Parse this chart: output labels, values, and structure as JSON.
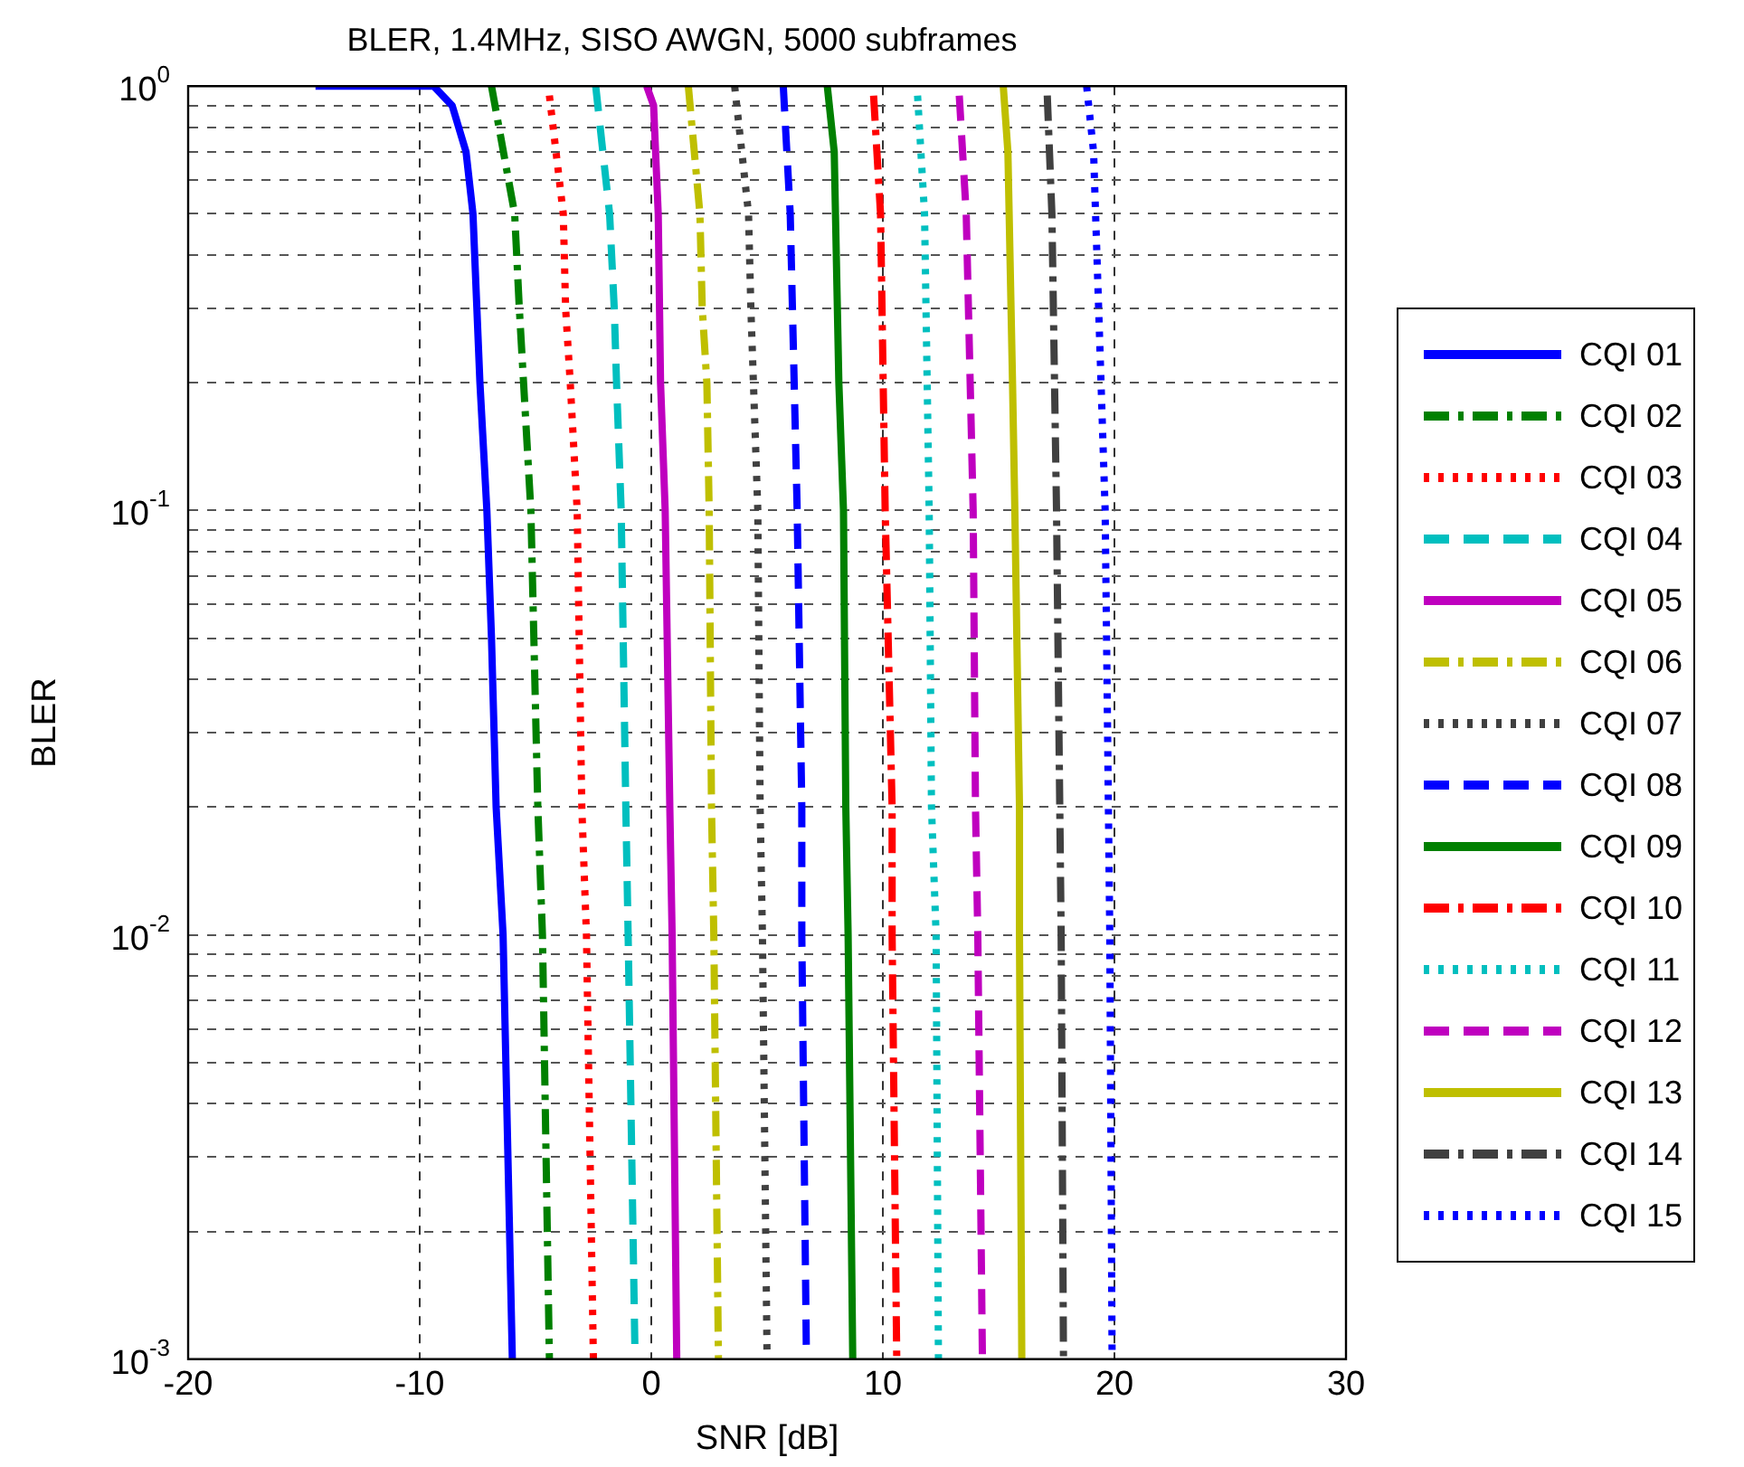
{
  "chart_data": {
    "type": "line",
    "title": "BLER, 1.4MHz, SISO AWGN, 5000 subframes",
    "xlabel": "SNR [dB]",
    "ylabel": "BLER",
    "log": "y",
    "grid": true,
    "legend": "right",
    "marker": "none",
    "xlim": [
      -20,
      30
    ],
    "xticks": [
      -20,
      -10,
      0,
      10,
      20,
      30
    ],
    "ylim": [
      0.001,
      1
    ],
    "yticks": [
      {
        "value": 1,
        "label": "10$^{0}$"
      },
      {
        "value": 0.9,
        "label": null
      },
      {
        "value": 0.8,
        "label": null
      },
      {
        "value": 0.7,
        "label": null
      },
      {
        "value": 0.6,
        "label": null
      },
      {
        "value": 0.5,
        "label": null
      },
      {
        "value": 0.4,
        "label": null
      },
      {
        "value": 0.3,
        "label": null
      },
      {
        "value": 0.2,
        "label": null
      },
      {
        "value": 0.1,
        "label": "10$^{-1}$"
      },
      {
        "value": 0.09,
        "label": null
      },
      {
        "value": 0.08,
        "label": null
      },
      {
        "value": 0.07,
        "label": null
      },
      {
        "value": 0.06,
        "label": null
      },
      {
        "value": 0.05,
        "label": null
      },
      {
        "value": 0.04,
        "label": null
      },
      {
        "value": 0.03,
        "label": null
      },
      {
        "value": 0.02,
        "label": null
      },
      {
        "value": 0.01,
        "label": "10$^{-2}$"
      },
      {
        "value": 0.009,
        "label": null
      },
      {
        "value": 0.008,
        "label": null
      },
      {
        "value": 0.007,
        "label": null
      },
      {
        "value": 0.006,
        "label": null
      },
      {
        "value": 0.005,
        "label": null
      },
      {
        "value": 0.004,
        "label": null
      },
      {
        "value": 0.003,
        "label": null
      },
      {
        "value": 0.002,
        "label": null
      },
      {
        "value": 0.001,
        "label": "10$^{-3}$"
      }
    ],
    "series": [
      {
        "name": "CQI 01",
        "color": "#0000ff",
        "line_style": "solid",
        "x": [
          -14.5,
          -9.4,
          -8.6,
          -8.0,
          -7.7,
          -7.4,
          -7.1,
          -6.9,
          -6.7,
          -6.4,
          -6.0
        ],
        "values": [
          1,
          1,
          0.9,
          0.7,
          0.5,
          0.2,
          0.1,
          0.05,
          0.02,
          0.01,
          0.001
        ]
      },
      {
        "name": "CQI 02",
        "color": "#008000",
        "line_style": "dashdot",
        "x": [
          -6.9,
          -5.9,
          -5.7,
          -5.2,
          -4.9,
          -4.7,
          -4.4
        ],
        "values": [
          1,
          0.5,
          0.3,
          0.1,
          0.02,
          0.01,
          0.001
        ]
      },
      {
        "name": "CQI 03",
        "color": "#ff0000",
        "line_style": "dotted",
        "x": [
          -4.4,
          -3.8,
          -3.7,
          -3.5,
          -3.2,
          -3.0,
          -2.8,
          -2.5
        ],
        "values": [
          0.95,
          0.5,
          0.3,
          0.2,
          0.1,
          0.02,
          0.01,
          0.001
        ]
      },
      {
        "name": "CQI 04",
        "color": "#00bfbf",
        "line_style": "dashed",
        "x": [
          -2.4,
          -1.8,
          -1.6,
          -1.5,
          -1.3,
          -1.1,
          -1.0,
          -0.7
        ],
        "values": [
          1,
          0.5,
          0.3,
          0.2,
          0.1,
          0.02,
          0.01,
          0.001
        ]
      },
      {
        "name": "CQI 05",
        "color": "#bf00bf",
        "line_style": "solid",
        "x": [
          -0.2,
          0.1,
          0.3,
          0.4,
          0.6,
          0.8,
          0.9,
          1.1
        ],
        "values": [
          1,
          0.9,
          0.5,
          0.2,
          0.1,
          0.02,
          0.01,
          0.001
        ]
      },
      {
        "name": "CQI 06",
        "color": "#bfbf00",
        "line_style": "dashdot",
        "x": [
          1.6,
          2.1,
          2.2,
          2.4,
          2.5,
          2.6,
          2.7,
          2.9
        ],
        "values": [
          1,
          0.5,
          0.3,
          0.2,
          0.1,
          0.02,
          0.01,
          0.001
        ]
      },
      {
        "name": "CQI 07",
        "color": "#404040",
        "line_style": "dotted",
        "x": [
          3.6,
          4.2,
          4.3,
          4.6,
          4.7,
          4.8,
          5.0
        ],
        "values": [
          1,
          0.5,
          0.3,
          0.1,
          0.02,
          0.01,
          0.001
        ]
      },
      {
        "name": "CQI 08",
        "color": "#0000ff",
        "line_style": "dashed",
        "x": [
          5.7,
          6.0,
          6.3,
          6.5,
          6.5,
          6.7
        ],
        "values": [
          1,
          0.5,
          0.1,
          0.02,
          0.01,
          0.001
        ]
      },
      {
        "name": "CQI 09",
        "color": "#008000",
        "line_style": "solid",
        "x": [
          7.6,
          7.9,
          8.1,
          8.3,
          8.4,
          8.5,
          8.7
        ],
        "values": [
          1,
          0.7,
          0.2,
          0.1,
          0.02,
          0.01,
          0.001
        ]
      },
      {
        "name": "CQI 10",
        "color": "#ff0000",
        "line_style": "dashdot",
        "x": [
          9.6,
          9.9,
          10.1,
          10.4,
          10.4,
          10.6
        ],
        "values": [
          0.95,
          0.5,
          0.1,
          0.02,
          0.01,
          0.001
        ]
      },
      {
        "name": "CQI 11",
        "color": "#00bfbf",
        "line_style": "dotted",
        "x": [
          11.5,
          11.8,
          12.0,
          12.1,
          12.3,
          12.4
        ],
        "values": [
          0.95,
          0.5,
          0.1,
          0.02,
          0.01,
          0.001
        ]
      },
      {
        "name": "CQI 12",
        "color": "#bf00bf",
        "line_style": "dashed",
        "x": [
          13.3,
          13.6,
          13.9,
          14.0,
          14.1,
          14.3
        ],
        "values": [
          0.95,
          0.5,
          0.1,
          0.02,
          0.01,
          0.001
        ]
      },
      {
        "name": "CQI 13",
        "color": "#bfbf00",
        "line_style": "solid",
        "x": [
          15.2,
          15.4,
          15.6,
          15.7,
          15.9,
          15.9,
          16.0
        ],
        "values": [
          1,
          0.7,
          0.2,
          0.1,
          0.02,
          0.01,
          0.001
        ]
      },
      {
        "name": "CQI 14",
        "color": "#404040",
        "line_style": "dashdot",
        "x": [
          17.1,
          17.3,
          17.5,
          17.7,
          17.8
        ],
        "values": [
          0.95,
          0.5,
          0.1,
          0.01,
          0.001
        ]
      },
      {
        "name": "CQI 15",
        "color": "#0000ff",
        "line_style": "dotted",
        "x": [
          18.8,
          19.1,
          19.6,
          19.8,
          19.9
        ],
        "values": [
          1,
          0.7,
          0.1,
          0.01,
          0.001
        ]
      }
    ]
  }
}
